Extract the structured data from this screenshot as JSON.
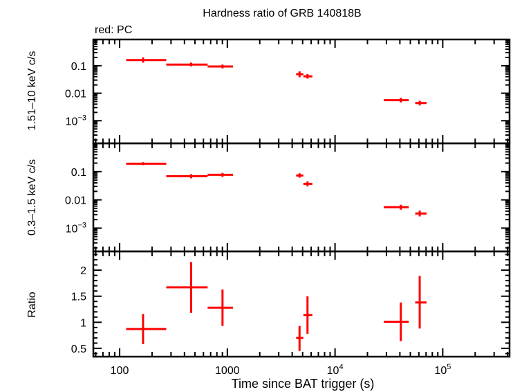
{
  "chart_data": [
    {
      "type": "scatter",
      "title": "Hardness ratio of GRB 140818B",
      "annotation": "red: PC",
      "xlabel": "Time since BAT trigger (s)",
      "ylabel": "1.51–10 keV c/s",
      "xscale": "log",
      "yscale": "log",
      "xlim": [
        57,
        417000
      ],
      "ylim": [
        0.00015,
        0.9
      ],
      "x_ticks": [
        {
          "v": 100,
          "label": "100"
        },
        {
          "v": 1000,
          "label": "1000"
        },
        {
          "v": 10000,
          "label": "10",
          "sup": "4"
        },
        {
          "v": 100000,
          "label": "10",
          "sup": "5"
        }
      ],
      "y_ticks": [
        {
          "v": 0.1,
          "label": "0.1"
        },
        {
          "v": 0.01,
          "label": "0.01"
        },
        {
          "v": 0.001,
          "label": "10",
          "sup": "−3"
        }
      ],
      "series": [
        {
          "color": "#ff0000",
          "points": [
            {
              "x": 165,
              "xlo": 115,
              "xhi": 271,
              "y": 0.16,
              "ylo": 0.13,
              "yhi": 0.2
            },
            {
              "x": 461,
              "xlo": 271,
              "xhi": 656,
              "y": 0.11,
              "ylo": 0.095,
              "yhi": 0.13
            },
            {
              "x": 902,
              "xlo": 656,
              "xhi": 1130,
              "y": 0.094,
              "ylo": 0.08,
              "yhi": 0.11
            },
            {
              "x": 4680,
              "xlo": 4350,
              "xhi": 5080,
              "y": 0.049,
              "ylo": 0.038,
              "yhi": 0.062
            },
            {
              "x": 5550,
              "xlo": 5080,
              "xhi": 6160,
              "y": 0.041,
              "ylo": 0.034,
              "yhi": 0.05
            },
            {
              "x": 40800,
              "xlo": 28300,
              "xhi": 48300,
              "y": 0.0056,
              "ylo": 0.0046,
              "yhi": 0.0068
            },
            {
              "x": 61100,
              "xlo": 55500,
              "xhi": 70800,
              "y": 0.0044,
              "ylo": 0.0036,
              "yhi": 0.0053
            }
          ]
        }
      ]
    },
    {
      "type": "scatter",
      "ylabel": "0.3–1.5 keV c/s",
      "xscale": "log",
      "yscale": "log",
      "xlim": [
        57,
        417000
      ],
      "ylim": [
        0.00015,
        1.0
      ],
      "y_ticks": [
        {
          "v": 0.1,
          "label": "0.1"
        },
        {
          "v": 0.01,
          "label": "0.01"
        },
        {
          "v": 0.001,
          "label": "10",
          "sup": "−3"
        }
      ],
      "series": [
        {
          "color": "#ff0000",
          "points": [
            {
              "x": 165,
              "xlo": 115,
              "xhi": 271,
              "y": 0.19,
              "ylo": 0.17,
              "yhi": 0.215
            },
            {
              "x": 461,
              "xlo": 271,
              "xhi": 656,
              "y": 0.069,
              "ylo": 0.058,
              "yhi": 0.081
            },
            {
              "x": 902,
              "xlo": 656,
              "xhi": 1130,
              "y": 0.077,
              "ylo": 0.065,
              "yhi": 0.09
            },
            {
              "x": 4680,
              "xlo": 4350,
              "xhi": 5080,
              "y": 0.073,
              "ylo": 0.061,
              "yhi": 0.087
            },
            {
              "x": 5550,
              "xlo": 5080,
              "xhi": 6160,
              "y": 0.037,
              "ylo": 0.03,
              "yhi": 0.045
            },
            {
              "x": 40800,
              "xlo": 28300,
              "xhi": 48300,
              "y": 0.0055,
              "ylo": 0.0045,
              "yhi": 0.0067
            },
            {
              "x": 61100,
              "xlo": 55500,
              "xhi": 70800,
              "y": 0.0033,
              "ylo": 0.0026,
              "yhi": 0.0042
            }
          ]
        }
      ]
    },
    {
      "type": "scatter",
      "ylabel": "Ratio",
      "xscale": "log",
      "yscale": "linear",
      "xlim": [
        57,
        417000
      ],
      "ylim": [
        0.34,
        2.36
      ],
      "y_ticks": [
        {
          "v": 2,
          "label": "2"
        },
        {
          "v": 1.5,
          "label": "1.5"
        },
        {
          "v": 1,
          "label": "1"
        },
        {
          "v": 0.5,
          "label": "0.5"
        }
      ],
      "y_minor_step": 0.1,
      "series": [
        {
          "color": "#ff0000",
          "points": [
            {
              "x": 165,
              "xlo": 115,
              "xhi": 271,
              "y": 0.87,
              "ylo": 0.58,
              "yhi": 1.16
            },
            {
              "x": 461,
              "xlo": 271,
              "xhi": 656,
              "y": 1.67,
              "ylo": 1.18,
              "yhi": 2.155
            },
            {
              "x": 902,
              "xlo": 656,
              "xhi": 1130,
              "y": 1.28,
              "ylo": 0.93,
              "yhi": 1.63
            },
            {
              "x": 4680,
              "xlo": 4350,
              "xhi": 5080,
              "y": 0.7,
              "ylo": 0.45,
              "yhi": 0.93
            },
            {
              "x": 5550,
              "xlo": 5080,
              "xhi": 6160,
              "y": 1.14,
              "ylo": 0.78,
              "yhi": 1.5
            },
            {
              "x": 40800,
              "xlo": 28300,
              "xhi": 48300,
              "y": 1.01,
              "ylo": 0.64,
              "yhi": 1.38
            },
            {
              "x": 61100,
              "xlo": 55500,
              "xhi": 70800,
              "y": 1.38,
              "ylo": 0.88,
              "yhi": 1.89
            }
          ]
        }
      ]
    }
  ]
}
